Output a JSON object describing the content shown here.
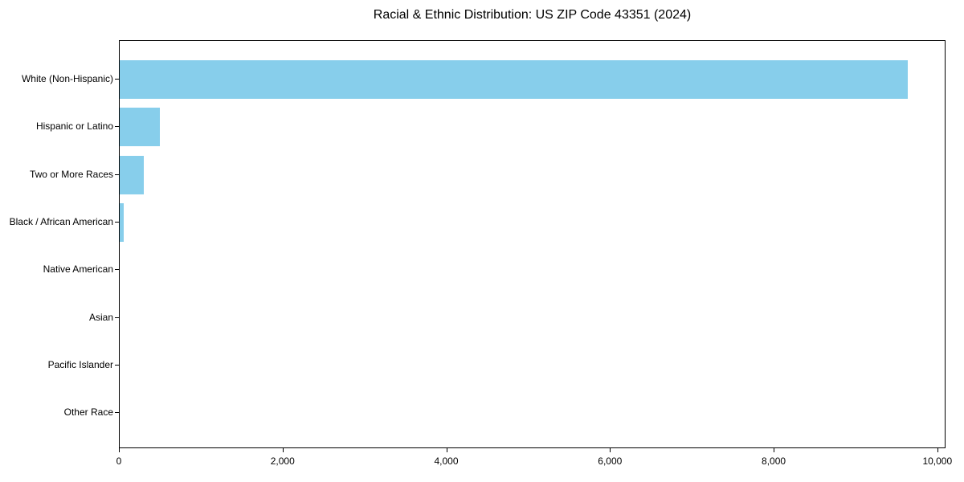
{
  "chart_data": {
    "type": "bar",
    "orientation": "horizontal",
    "title": "Racial & Ethnic Distribution: US ZIP Code 43351 (2024)",
    "categories": [
      "White (Non-Hispanic)",
      "Hispanic or Latino",
      "Two or More Races",
      "Black / African American",
      "Native American",
      "Asian",
      "Pacific Islander",
      "Other Race"
    ],
    "values": [
      9630,
      490,
      295,
      50,
      0,
      0,
      0,
      0
    ],
    "xlabel": "",
    "ylabel": "",
    "xlim": [
      0,
      10100
    ],
    "x_ticks": [
      0,
      2000,
      4000,
      6000,
      8000,
      10000
    ],
    "x_tick_labels": [
      "0",
      "2,000",
      "4,000",
      "6,000",
      "8,000",
      "10,000"
    ],
    "bar_color": "#87CEEB",
    "border_color": "#000000",
    "text_color": "#000000",
    "grid": false,
    "legend": null
  }
}
